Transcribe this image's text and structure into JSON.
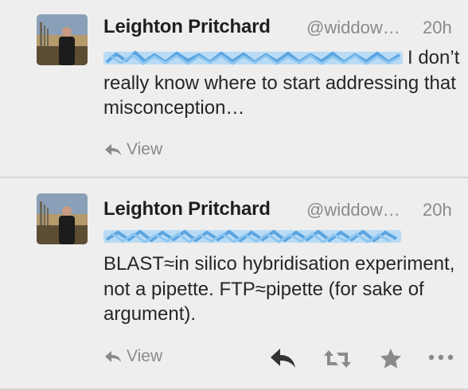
{
  "tweets": [
    {
      "author": "Leighton Pritchard",
      "handle": "@widdow…",
      "time": "20h",
      "text": "I don’t really know where to start addressing that misconception…",
      "view_label": "View",
      "mentions_redacted": true
    },
    {
      "author": "Leighton Pritchard",
      "handle": "@widdow…",
      "time": "20h",
      "text": "BLAST≈in silico hybridisation experiment, not a pipette. FTP≈pipette (for sake of argument).",
      "view_label": "View",
      "mentions_redacted": true,
      "actions": [
        "reply-icon",
        "retweet-icon",
        "favorite-icon",
        "more-icon"
      ]
    }
  ],
  "colors": {
    "background": "#eeeeee",
    "text": "#262626",
    "muted": "#8a8a8a",
    "redaction": "#6fb3e8"
  }
}
